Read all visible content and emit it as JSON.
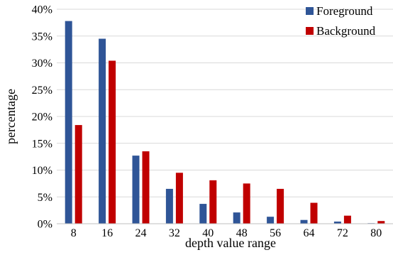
{
  "chart_data": {
    "type": "bar",
    "xlabel": "depth value range",
    "ylabel": "percentage",
    "categories": [
      "8",
      "16",
      "24",
      "32",
      "40",
      "48",
      "56",
      "64",
      "72",
      "80"
    ],
    "series": [
      {
        "name": "Foreground",
        "color": "#2f5597",
        "values": [
          37.8,
          34.5,
          12.7,
          6.5,
          3.7,
          2.1,
          1.3,
          0.7,
          0.4,
          0.1
        ]
      },
      {
        "name": "Background",
        "color": "#c00000",
        "values": [
          18.4,
          30.4,
          13.5,
          9.5,
          8.1,
          7.5,
          6.5,
          3.9,
          1.5,
          0.5
        ]
      }
    ],
    "ylim": [
      0,
      40
    ],
    "yticks": [
      0,
      5,
      10,
      15,
      20,
      25,
      30,
      35,
      40
    ],
    "ytick_labels": [
      "0%",
      "5%",
      "10%",
      "15%",
      "20%",
      "25%",
      "30%",
      "35%",
      "40%"
    ],
    "grid": true,
    "legend_position": "top-right"
  }
}
